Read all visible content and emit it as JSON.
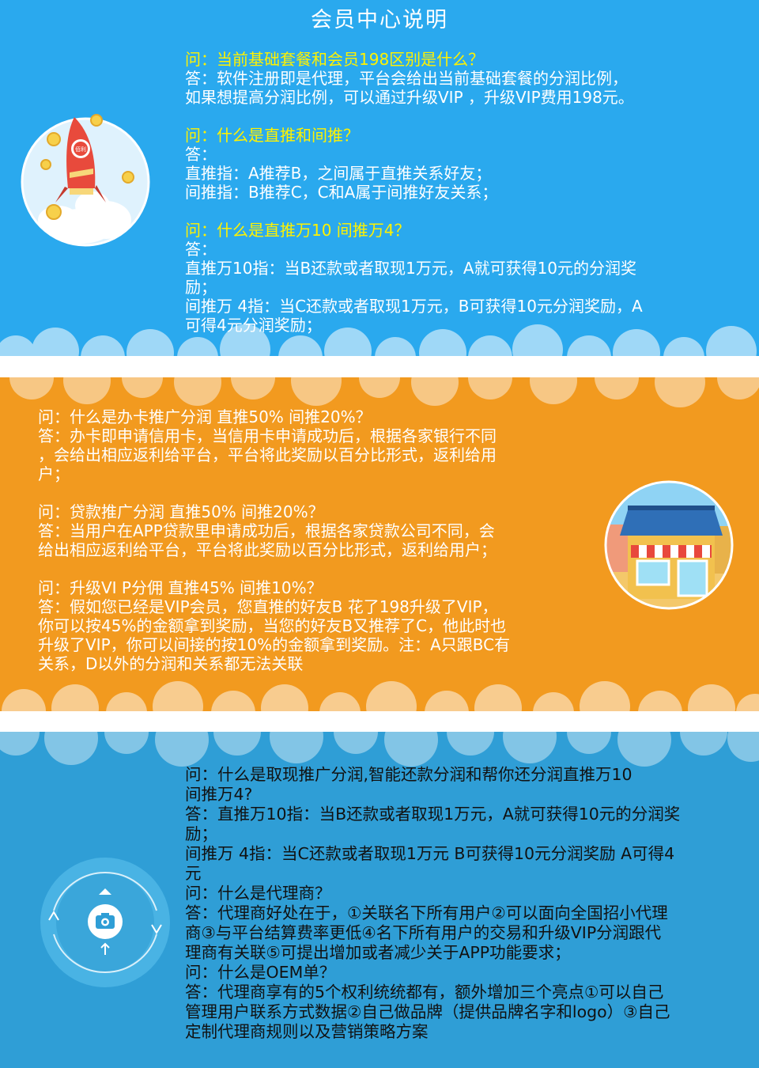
{
  "title": "会员中心说明",
  "section1": {
    "items": [
      {
        "q": "问：当前基础套餐和会员198区别是什么？",
        "a": [
          "答：软件注册即是代理，平台会给出当前基础套餐的分润比例，",
          "如果想提高分润比例，可以通过升级VIP ，升级VIP费用198元。"
        ]
      },
      {
        "q": "问：什么是直推和间推？",
        "a": [
          "答：",
          "直推指：A推荐B，之间属于直推关系好友；",
          "间推指：B推荐C，C和A属于间推好友关系；"
        ]
      },
      {
        "q": "问：什么是直推万10 间推万4？",
        "a": [
          "答：",
          "直推万10指：当B还款或者取现1万元，A就可获得10元的分润奖",
          "励；",
          "间推万 4指：当C还款或者取现1万元，B可获得10元分润奖励，A",
          "可得4元分润奖励；"
        ]
      }
    ],
    "rocket_badge": "佰利"
  },
  "section2": {
    "items": [
      {
        "q": "问：什么是办卡推广分润 直推50% 间推20%？",
        "a": [
          "答：办卡即申请信用卡，当信用卡申请成功后，根据各家银行不同",
          "，会给出相应返利给平台，平台将此奖励以百分比形式，返利给用",
          "户；"
        ]
      },
      {
        "q": "问：贷款推广分润 直推50% 间推20%？",
        "a": [
          "答：当用户在APP贷款里申请成功后，根据各家贷款公司不同，会",
          "给出相应返利给平台，平台将此奖励以百分比形式，返利给用户；"
        ]
      },
      {
        "q": "问：升级VI P分佣 直推45% 间推10%？",
        "a": [
          "答：假如您已经是VIP会员，您直推的好友B 花了198升级了VIP，",
          "你可以按45%的金额拿到奖励，当您的好友B又推荐了C，他此时也",
          "升级了VIP，你可以间接的按10%的金额拿到奖励。注：A只跟BC有",
          "关系，D以外的分润和关系都无法关联"
        ]
      }
    ]
  },
  "section3": {
    "lines": [
      "问：什么是取现推广分润,智能还款分润和帮你还分润直推万10",
      "间推万4?",
      "答：直推万10指：当B还款或者取现1万元，A就可获得10元的分润奖",
      "励；",
      "间推万 4指：当C还款或者取现1万元 B可获得10元分润奖励 A可得4",
      "元",
      "问：什么是代理商？",
      "答：代理商好处在于，①关联名下所有用户②可以面向全国招小代理",
      "商③与平台结算费率更低④名下所有用户的交易和升级VIP分润跟代",
      "理商有关联⑤可提出增加或者减少关于APP功能要求；",
      "问：什么是OEM单？",
      "答：代理商享有的5个权利统统都有，额外增加三个亮点①可以自己",
      "管理用户联系方式数据②自己做品牌（提供品牌名字和logo）③自己",
      "定制代理商规则以及营销策略方案"
    ]
  },
  "colors": {
    "panel1": "#2aa9ee",
    "panel2": "#f29a1f",
    "panel3": "#2f9ed6",
    "question_yellow": "#fff200",
    "dark_text": "#111111"
  },
  "icons": {
    "section1": "rocket-illustration",
    "section2": "shop-illustration",
    "section3": "camera-icon"
  }
}
